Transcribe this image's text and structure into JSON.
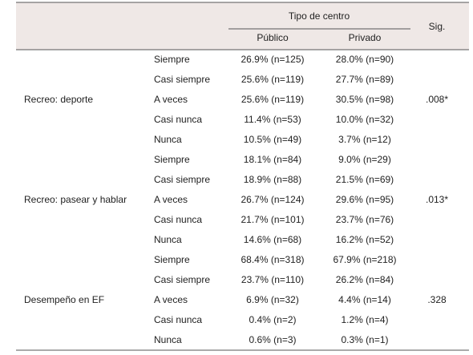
{
  "table": {
    "header": {
      "group_title": "Tipo de centro",
      "columns": [
        "Público",
        "Privado"
      ],
      "sig": "Sig."
    },
    "groups": [
      {
        "label": "Recreo: deporte",
        "sig": ".008*",
        "rows": [
          {
            "answer": "Siempre",
            "publico": "26.9% (n=125)",
            "privado": "28.0% (n=90)"
          },
          {
            "answer": "Casi siempre",
            "publico": "25.6% (n=119)",
            "privado": "27.7% (n=89)"
          },
          {
            "answer": "A veces",
            "publico": "25.6% (n=119)",
            "privado": "30.5% (n=98)"
          },
          {
            "answer": "Casi nunca",
            "publico": "11.4% (n=53)",
            "privado": "10.0% (n=32)"
          },
          {
            "answer": "Nunca",
            "publico": "10.5% (n=49)",
            "privado": "3.7% (n=12)"
          }
        ]
      },
      {
        "label": "Recreo: pasear y hablar",
        "sig": ".013*",
        "rows": [
          {
            "answer": "Siempre",
            "publico": "18.1% (n=84)",
            "privado": "9.0% (n=29)"
          },
          {
            "answer": "Casi siempre",
            "publico": "18.9% (n=88)",
            "privado": "21.5% (n=69)"
          },
          {
            "answer": "A veces",
            "publico": "26.7% (n=124)",
            "privado": "29.6% (n=95)"
          },
          {
            "answer": "Casi nunca",
            "publico": "21.7% (n=101)",
            "privado": "23.7% (n=76)"
          },
          {
            "answer": "Nunca",
            "publico": "14.6% (n=68)",
            "privado": "16.2% (n=52)"
          }
        ]
      },
      {
        "label": "Desempeño en EF",
        "sig": ".328",
        "rows": [
          {
            "answer": "Siempre",
            "publico": "68.4% (n=318)",
            "privado": "67.9% (n=218)"
          },
          {
            "answer": "Casi siempre",
            "publico": "23.7% (n=110)",
            "privado": "26.2% (n=84)"
          },
          {
            "answer": "A veces",
            "publico": "6.9% (n=32)",
            "privado": "4.4% (n=14)"
          },
          {
            "answer": "Casi nunca",
            "publico": "0.4% (n=2)",
            "privado": "1.2% (n=4)"
          },
          {
            "answer": "Nunca",
            "publico": "0.6% (n=3)",
            "privado": "0.3% (n=1)"
          }
        ]
      }
    ]
  }
}
